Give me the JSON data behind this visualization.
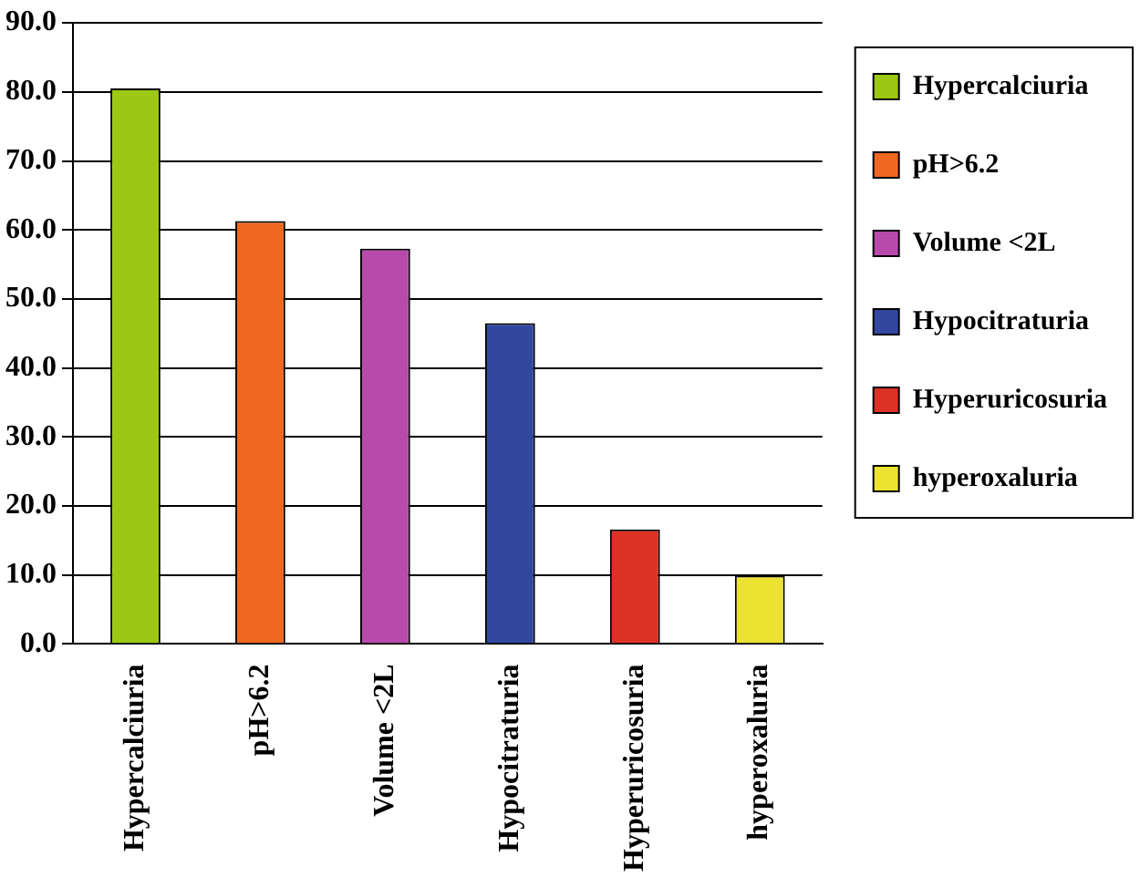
{
  "chart_data": {
    "type": "bar",
    "categories": [
      "Hypercalciuria",
      "pH>6.2",
      "Volume <2L",
      "Hypocitraturia",
      "Hyperuricosuria",
      "hyperoxaluria"
    ],
    "series": [
      {
        "name": "Hypercalciuria",
        "color": "#9cc813",
        "values": [
          80.5,
          null,
          null,
          null,
          null,
          null
        ]
      },
      {
        "name": "pH>6.2",
        "color": "#ef6720",
        "values": [
          null,
          61.3,
          null,
          null,
          null,
          null
        ]
      },
      {
        "name": "Volume <2L",
        "color": "#b84aac",
        "values": [
          null,
          null,
          57.3,
          null,
          null,
          null
        ]
      },
      {
        "name": "Hypocitraturia",
        "color": "#3247a0",
        "values": [
          null,
          null,
          null,
          46.5,
          null,
          null
        ]
      },
      {
        "name": "Hyperuricosuria",
        "color": "#dc3226",
        "values": [
          null,
          null,
          null,
          null,
          16.6,
          null
        ]
      },
      {
        "name": "hyperoxaluria",
        "color": "#ebe232",
        "values": [
          null,
          null,
          null,
          null,
          null,
          9.9
        ]
      }
    ],
    "ylim": [
      0,
      90
    ],
    "yticks": [
      {
        "value": 0,
        "label": "0.0"
      },
      {
        "value": 10,
        "label": "10.0"
      },
      {
        "value": 20,
        "label": "20.0"
      },
      {
        "value": 30,
        "label": "30.0"
      },
      {
        "value": 40,
        "label": "40.0"
      },
      {
        "value": 50,
        "label": "50.0"
      },
      {
        "value": 60,
        "label": "60.0"
      },
      {
        "value": 70,
        "label": "70.0"
      },
      {
        "value": 80,
        "label": "80.0"
      },
      {
        "value": 90,
        "label": "90.0"
      }
    ],
    "grid": "y",
    "legend": "top right"
  }
}
